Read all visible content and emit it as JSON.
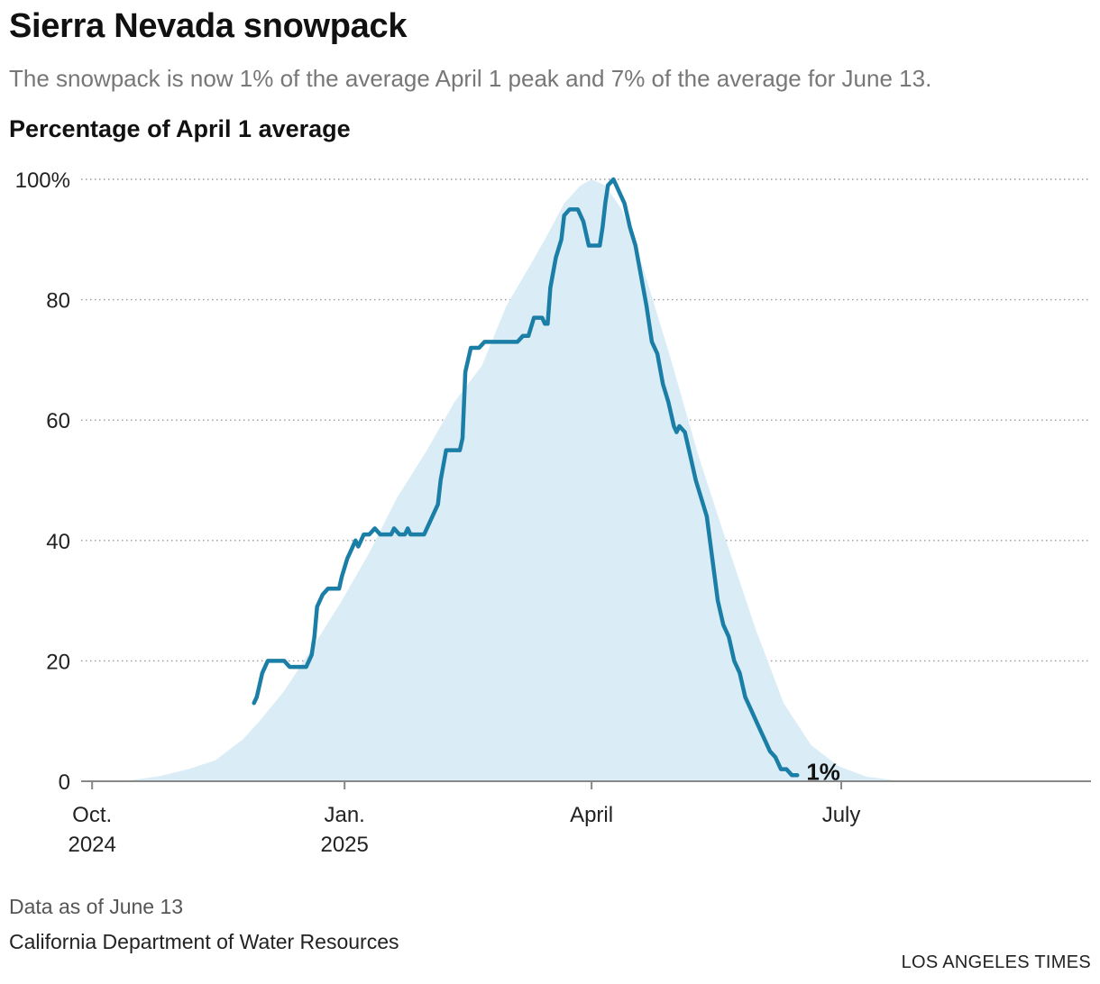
{
  "header": {
    "title": "Sierra Nevada snowpack",
    "subtitle": "The snowpack is now 1% of the average April 1 peak and 7% of the average for June 13.",
    "ylabel": "Percentage of April 1 average"
  },
  "footer": {
    "note": "Data as of June 13",
    "source": "California Department of Water Resources",
    "credit": "LOS ANGELES TIMES"
  },
  "chart_data": {
    "type": "area",
    "title": "Sierra Nevada snowpack",
    "ylabel": "Percentage of April 1 average",
    "ylim": [
      0,
      100
    ],
    "y_ticks": [
      "100%",
      "80",
      "60",
      "40",
      "20",
      "0"
    ],
    "y_tick_values": [
      100,
      80,
      60,
      40,
      20,
      0
    ],
    "x_ticks": [
      {
        "date": "2024-10-01",
        "lines": [
          "Oct.",
          "2024"
        ]
      },
      {
        "date": "2025-01-01",
        "lines": [
          "Jan.",
          "2025"
        ]
      },
      {
        "date": "2025-04-01",
        "lines": [
          "April"
        ]
      },
      {
        "date": "2025-07-01",
        "lines": [
          "July"
        ]
      }
    ],
    "xlim": [
      "2024-09-27",
      "2025-09-30"
    ],
    "grid": "horizontal dotted",
    "end_label": "1%",
    "colors": {
      "average_area": "#daedf6",
      "current_line": "#1a7ea6",
      "axis": "#888888",
      "grid": "#999999"
    },
    "series": [
      {
        "kind": "area",
        "points": [
          [
            "2024-10-01",
            0
          ],
          [
            "2024-10-15",
            0.2
          ],
          [
            "2024-10-25",
            0.8
          ],
          [
            "2024-11-05",
            2
          ],
          [
            "2024-11-15",
            3.5
          ],
          [
            "2024-11-25",
            7
          ],
          [
            "2024-12-01",
            10
          ],
          [
            "2024-12-10",
            15
          ],
          [
            "2024-12-20",
            22
          ],
          [
            "2024-12-31",
            30
          ],
          [
            "2025-01-10",
            38
          ],
          [
            "2025-01-20",
            47
          ],
          [
            "2025-01-31",
            55
          ],
          [
            "2025-02-10",
            63
          ],
          [
            "2025-02-20",
            69
          ],
          [
            "2025-03-01",
            79
          ],
          [
            "2025-03-10",
            86
          ],
          [
            "2025-03-15",
            90
          ],
          [
            "2025-03-22",
            96
          ],
          [
            "2025-03-28",
            99
          ],
          [
            "2025-04-01",
            100
          ],
          [
            "2025-04-06",
            99
          ],
          [
            "2025-04-12",
            95
          ],
          [
            "2025-04-20",
            85
          ],
          [
            "2025-04-30",
            70
          ],
          [
            "2025-05-10",
            54
          ],
          [
            "2025-05-20",
            40
          ],
          [
            "2025-05-31",
            25
          ],
          [
            "2025-06-10",
            13
          ],
          [
            "2025-06-20",
            6
          ],
          [
            "2025-06-30",
            2.5
          ],
          [
            "2025-07-10",
            0.8
          ],
          [
            "2025-07-20",
            0.2
          ],
          [
            "2025-07-31",
            0
          ]
        ]
      },
      {
        "kind": "line",
        "points": [
          [
            "2024-11-29",
            13
          ],
          [
            "2024-11-30",
            14
          ],
          [
            "2024-12-02",
            18
          ],
          [
            "2024-12-04",
            20
          ],
          [
            "2024-12-10",
            20
          ],
          [
            "2024-12-12",
            19
          ],
          [
            "2024-12-18",
            19
          ],
          [
            "2024-12-20",
            21
          ],
          [
            "2024-12-21",
            24
          ],
          [
            "2024-12-22",
            29
          ],
          [
            "2024-12-24",
            31
          ],
          [
            "2024-12-26",
            32
          ],
          [
            "2024-12-30",
            32
          ],
          [
            "2024-12-31",
            34
          ],
          [
            "2025-01-02",
            37
          ],
          [
            "2025-01-03",
            38
          ],
          [
            "2025-01-05",
            40
          ],
          [
            "2025-01-06",
            39
          ],
          [
            "2025-01-08",
            41
          ],
          [
            "2025-01-10",
            41
          ],
          [
            "2025-01-12",
            42
          ],
          [
            "2025-01-14",
            41
          ],
          [
            "2025-01-18",
            41
          ],
          [
            "2025-01-19",
            42
          ],
          [
            "2025-01-21",
            41
          ],
          [
            "2025-01-23",
            41
          ],
          [
            "2025-01-24",
            42
          ],
          [
            "2025-01-25",
            41
          ],
          [
            "2025-01-30",
            41
          ],
          [
            "2025-02-01",
            43
          ],
          [
            "2025-02-04",
            46
          ],
          [
            "2025-02-05",
            50
          ],
          [
            "2025-02-07",
            55
          ],
          [
            "2025-02-12",
            55
          ],
          [
            "2025-02-13",
            57
          ],
          [
            "2025-02-14",
            68
          ],
          [
            "2025-02-16",
            72
          ],
          [
            "2025-02-19",
            72
          ],
          [
            "2025-02-21",
            73
          ],
          [
            "2025-03-05",
            73
          ],
          [
            "2025-03-07",
            74
          ],
          [
            "2025-03-09",
            74
          ],
          [
            "2025-03-11",
            77
          ],
          [
            "2025-03-14",
            77
          ],
          [
            "2025-03-15",
            76
          ],
          [
            "2025-03-16",
            76
          ],
          [
            "2025-03-17",
            82
          ],
          [
            "2025-03-19",
            87
          ],
          [
            "2025-03-21",
            90
          ],
          [
            "2025-03-22",
            94
          ],
          [
            "2025-03-24",
            95
          ],
          [
            "2025-03-27",
            95
          ],
          [
            "2025-03-29",
            93
          ],
          [
            "2025-03-31",
            89
          ],
          [
            "2025-04-04",
            89
          ],
          [
            "2025-04-05",
            92
          ],
          [
            "2025-04-06",
            96
          ],
          [
            "2025-04-07",
            99
          ],
          [
            "2025-04-09",
            100
          ],
          [
            "2025-04-11",
            98
          ],
          [
            "2025-04-13",
            96
          ],
          [
            "2025-04-15",
            92
          ],
          [
            "2025-04-17",
            89
          ],
          [
            "2025-04-19",
            84
          ],
          [
            "2025-04-21",
            79
          ],
          [
            "2025-04-23",
            73
          ],
          [
            "2025-04-25",
            71
          ],
          [
            "2025-04-27",
            66
          ],
          [
            "2025-04-29",
            63
          ],
          [
            "2025-05-01",
            59
          ],
          [
            "2025-05-02",
            58
          ],
          [
            "2025-05-03",
            59
          ],
          [
            "2025-05-05",
            58
          ],
          [
            "2025-05-07",
            54
          ],
          [
            "2025-05-09",
            50
          ],
          [
            "2025-05-11",
            47
          ],
          [
            "2025-05-13",
            44
          ],
          [
            "2025-05-15",
            37
          ],
          [
            "2025-05-17",
            30
          ],
          [
            "2025-05-19",
            26
          ],
          [
            "2025-05-21",
            24
          ],
          [
            "2025-05-23",
            20
          ],
          [
            "2025-05-25",
            18
          ],
          [
            "2025-05-27",
            14
          ],
          [
            "2025-05-29",
            12
          ],
          [
            "2025-06-01",
            9
          ],
          [
            "2025-06-03",
            7
          ],
          [
            "2025-06-05",
            5
          ],
          [
            "2025-06-07",
            4
          ],
          [
            "2025-06-09",
            2
          ],
          [
            "2025-06-11",
            2
          ],
          [
            "2025-06-13",
            1
          ],
          [
            "2025-06-15",
            1
          ]
        ]
      }
    ]
  }
}
